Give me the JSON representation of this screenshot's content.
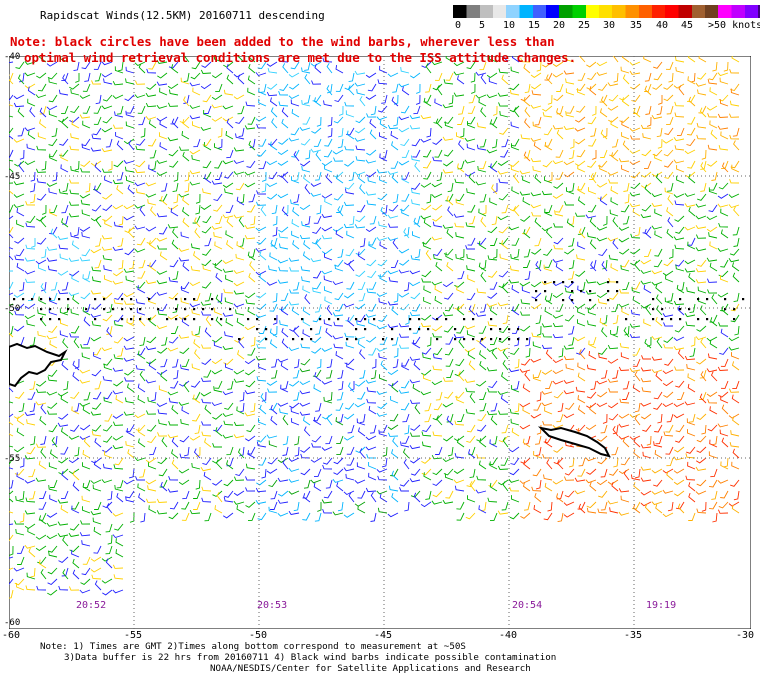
{
  "title": "Rapidscat Winds(12.5KM) 20160711 descending",
  "legend": {
    "labels": [
      "0",
      "5",
      "10",
      "15",
      "20",
      "25",
      "30",
      "35",
      "40",
      "45",
      ">50 knots"
    ],
    "colors": [
      "#000000",
      "#7f7f7f",
      "#bfbfbf",
      "#8fd3ff",
      "#00b4ff",
      "#0000ff",
      "#00c000",
      "#ffff00",
      "#ffbf00",
      "#ff6000",
      "#ff0000",
      "#c00000",
      "#a06030",
      "#ff00ff",
      "#8000ff",
      "#400080"
    ]
  },
  "note": {
    "line1": "Note: black circles have been added to the wind barbs, wherever less than",
    "line2": "optimal wind retrieval conditions are met due to the ISS attitude changes."
  },
  "axes": {
    "x_labels": [
      "-60",
      "-55",
      "-50",
      "-45",
      "-40",
      "-35",
      "-30"
    ],
    "y_labels": [
      "-40",
      "-45",
      "-50",
      "-55",
      "-60"
    ]
  },
  "times": [
    "20:52",
    "20:53",
    "20:54",
    "19:19"
  ],
  "footer": {
    "line1": "Note: 1) Times are GMT 2)Times along bottom correspond to measurement at ~50S",
    "line2": "3)Data buffer is 22 hrs from 20160711 4) Black wind barbs indicate possible contamination",
    "line3": "NOAA/NESDIS/Center for Satellite Applications and Research"
  }
}
